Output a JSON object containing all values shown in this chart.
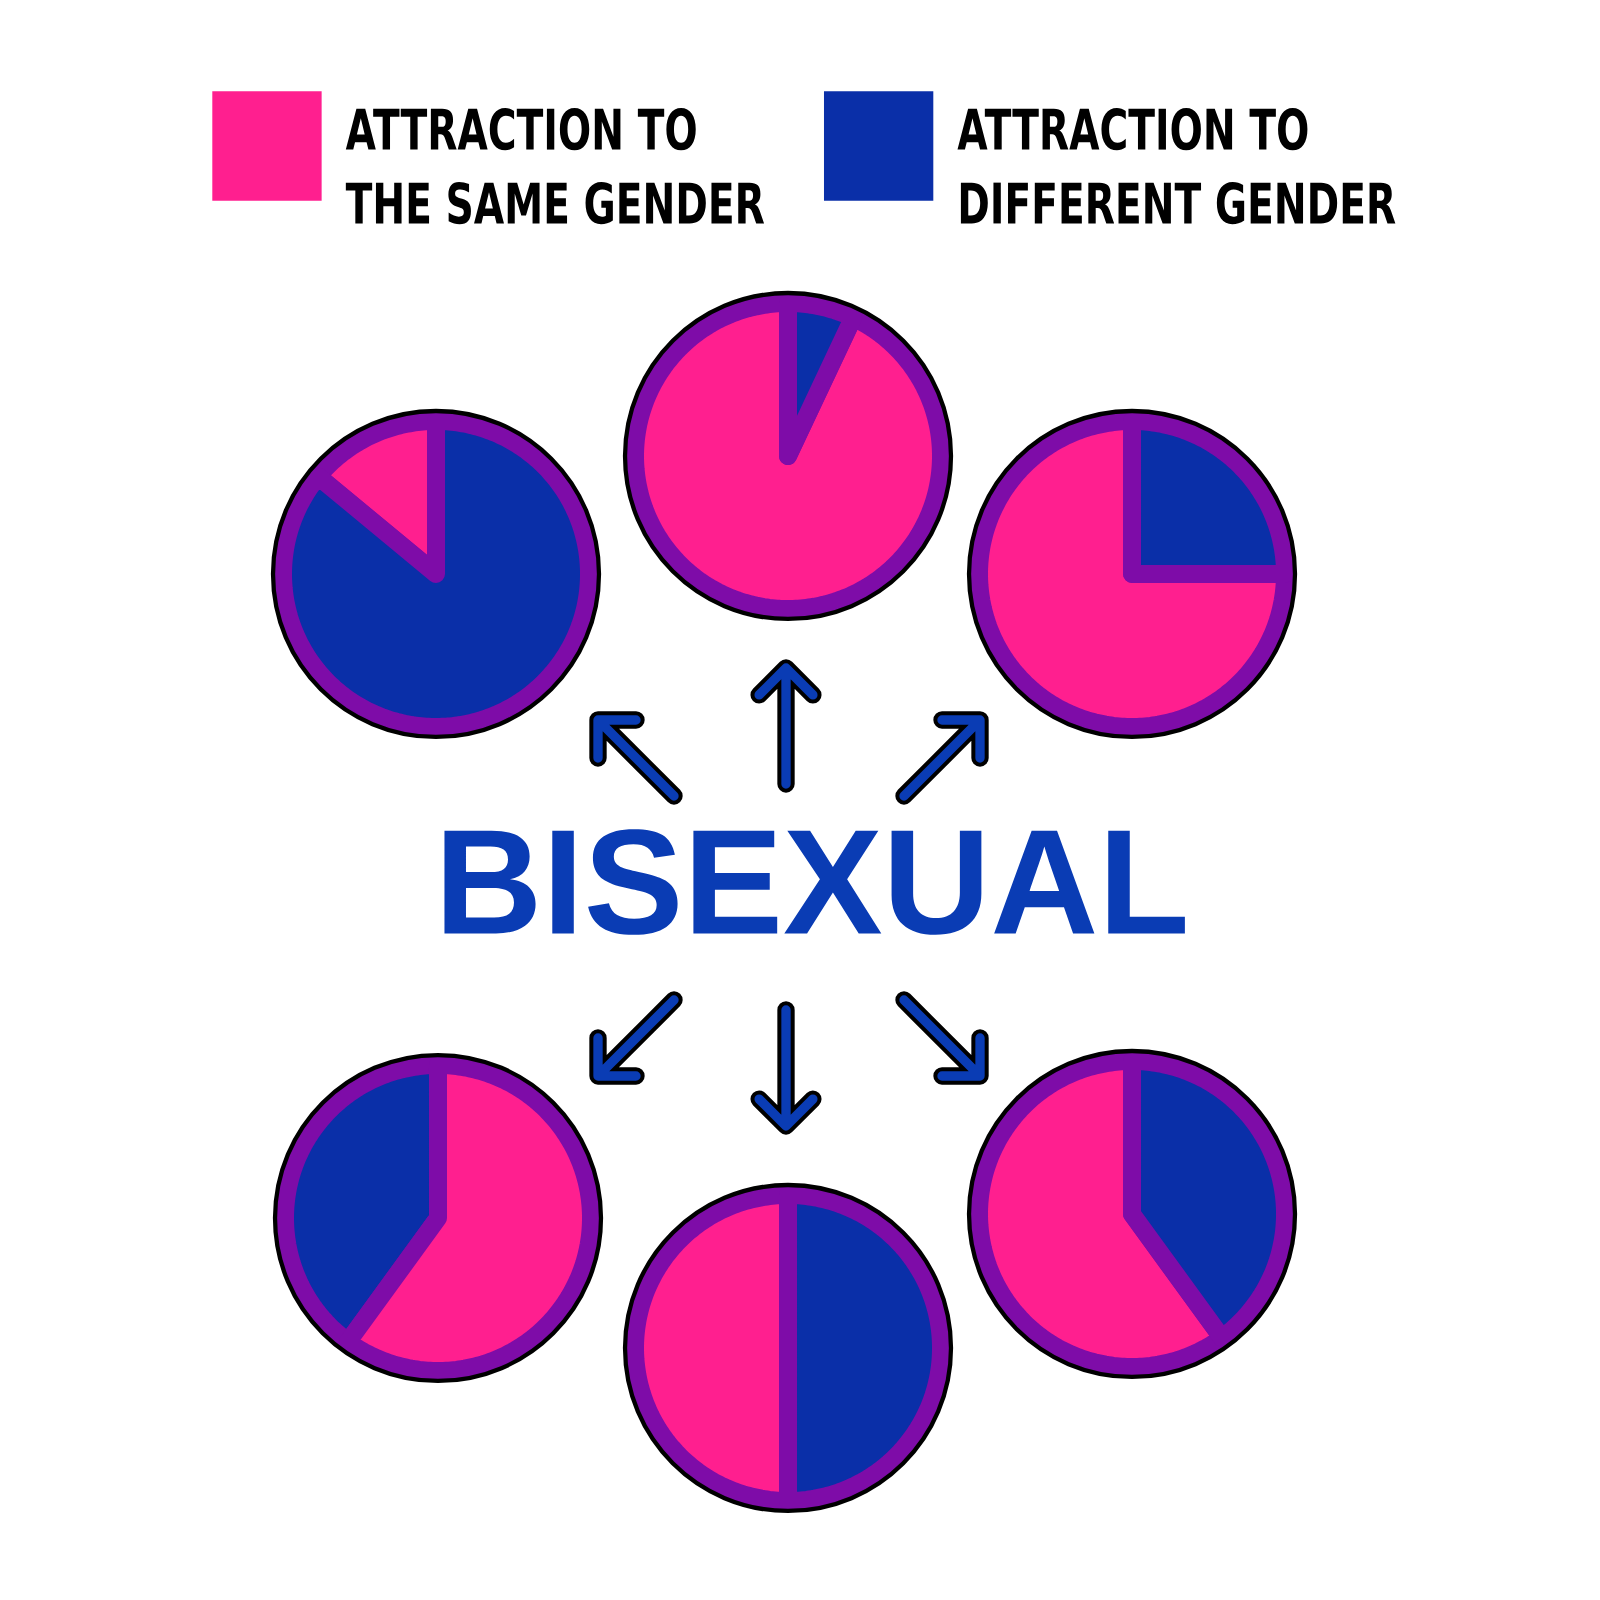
{
  "chart_data": [
    {
      "type": "pie",
      "categories": [
        "ATTRACTION TO THE SAME GENDER",
        "ATTRACTION TO DIFFERENT GENDER"
      ],
      "values": [
        14,
        86
      ],
      "colors": [
        "#ff1f8f",
        "#0a2fa8"
      ],
      "legend": "top"
    },
    {
      "type": "pie",
      "values": [
        93,
        7
      ],
      "colors": [
        "#ff1f8f",
        "#0a2fa8"
      ]
    },
    {
      "type": "pie",
      "values": [
        75,
        25
      ],
      "colors": [
        "#ff1f8f",
        "#0a2fa8"
      ]
    },
    {
      "type": "other",
      "title": "BISEXUAL"
    },
    {
      "type": "pie",
      "values": [
        40,
        60
      ],
      "colors": [
        "#0a2fa8",
        "#ff1f8f"
      ]
    },
    {
      "type": "pie",
      "values": [
        50,
        50
      ],
      "colors": [
        "#ff1f8f",
        "#0a2fa8"
      ]
    },
    {
      "type": "pie",
      "values": [
        60,
        40
      ],
      "colors": [
        "#ff1f8f",
        "#0a2fa8"
      ]
    }
  ]
}
